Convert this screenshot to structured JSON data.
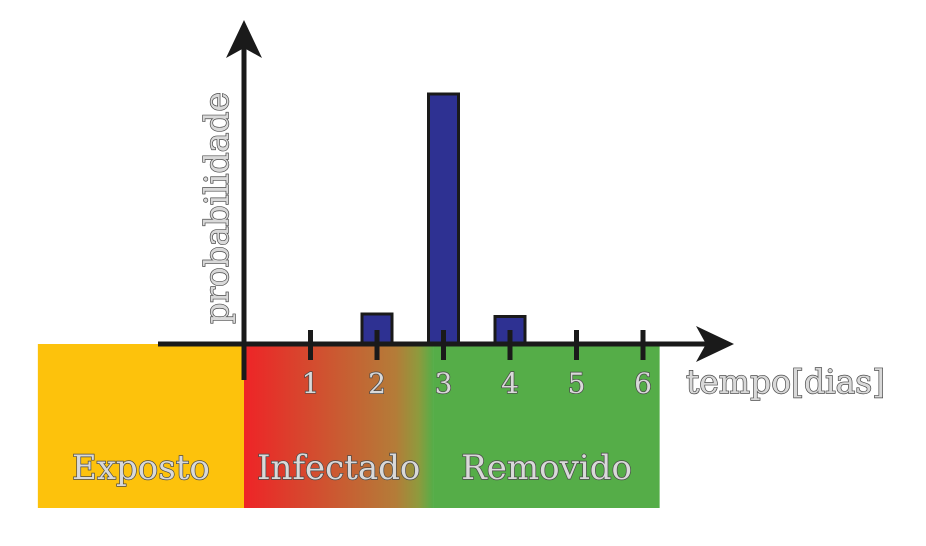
{
  "chart_data": {
    "type": "bar",
    "xlabel": "tempo[dias]",
    "ylabel": "probabilidade",
    "x_ticks": [
      "1",
      "2",
      "3",
      "4",
      "5",
      "6"
    ],
    "bars": [
      {
        "x": 2,
        "value": 0.12
      },
      {
        "x": 3,
        "value": 1.0
      },
      {
        "x": 4,
        "value": 0.11
      }
    ],
    "xlim": [
      -1,
      6
    ],
    "ylim": [
      0,
      1.05
    ],
    "grid": false,
    "bar_color": "#2e3192",
    "zones": [
      {
        "label": "Exposto",
        "from": -3.1,
        "to": 0,
        "color": "#fdc20c"
      },
      {
        "label": "Infectado",
        "from": 0,
        "to": 2.85,
        "gradient": [
          "#ee2427",
          "#a9813a"
        ]
      },
      {
        "label": "Removido",
        "from": 2.85,
        "to": 6.25,
        "color": "#55ad48"
      }
    ]
  }
}
